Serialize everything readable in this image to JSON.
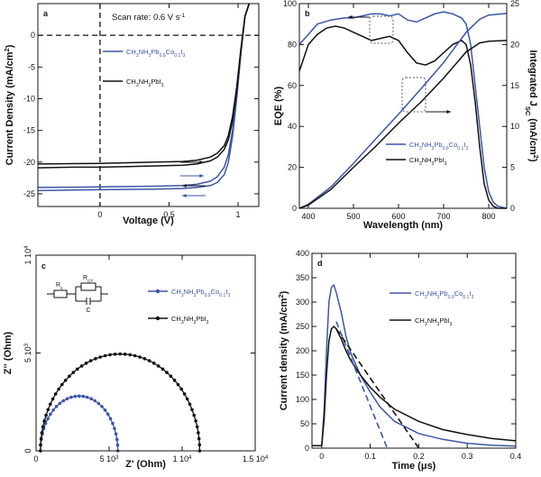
{
  "figure": {
    "blue": "#3a57a7",
    "black": "#111111"
  },
  "chart_data": [
    {
      "panel": "a",
      "type": "line",
      "annotation": "Scan rate: 0.6 V s",
      "annotation_sup": "-1",
      "xlabel": "Voltage (V)",
      "ylabel": "Current Density (mA/cm",
      "ylabel_sup": "2",
      "ylabel_end": ")",
      "xlim": [
        -0.45,
        1.15
      ],
      "ylim": [
        -27,
        5
      ],
      "xticks": [
        {
          "value": 0,
          "label": "0"
        },
        {
          "value": 0.5,
          "label": "0.5"
        },
        {
          "value": 1,
          "label": "1"
        }
      ],
      "yticks": [
        {
          "value": 0,
          "label": "0"
        },
        {
          "value": -5,
          "label": "-5"
        },
        {
          "value": -10,
          "label": "-10"
        },
        {
          "value": -15,
          "label": "-15"
        },
        {
          "value": -20,
          "label": "-20"
        },
        {
          "value": -25,
          "label": "-25"
        }
      ],
      "legend": [
        {
          "color": "#3a57a7",
          "parts": [
            [
              "CH",
              "n"
            ],
            [
              "3",
              "s"
            ],
            [
              "NH",
              "n"
            ],
            [
              "3",
              "s"
            ],
            [
              "Pb",
              "n"
            ],
            [
              "0.9",
              "s"
            ],
            [
              "Co",
              "n"
            ],
            [
              "0.1",
              "s"
            ],
            [
              "I",
              "n"
            ],
            [
              "3",
              "s"
            ]
          ]
        },
        {
          "color": "#111111",
          "parts": [
            [
              "CH",
              "n"
            ],
            [
              "3",
              "s"
            ],
            [
              "NH",
              "n"
            ],
            [
              "3",
              "s"
            ],
            [
              "PbI",
              "n"
            ],
            [
              "3",
              "s"
            ]
          ]
        }
      ],
      "series": [
        {
          "color": "#3a57a7",
          "x": [
            -0.45,
            -0.2,
            0,
            0.2,
            0.4,
            0.6,
            0.7,
            0.8,
            0.85,
            0.9,
            0.93,
            0.96,
            0.99,
            1.02,
            1.05,
            1.08
          ],
          "y": [
            -24.5,
            -24.4,
            -24.35,
            -24.3,
            -24.25,
            -24.15,
            -24.0,
            -23.7,
            -23.2,
            -22.0,
            -20.0,
            -16.0,
            -10.0,
            -3.0,
            3.0,
            5.0
          ]
        },
        {
          "color": "#3a57a7",
          "x": [
            -0.45,
            -0.2,
            0,
            0.2,
            0.4,
            0.6,
            0.7,
            0.8,
            0.85,
            0.9,
            0.93,
            0.96,
            0.99,
            1.02,
            1.05,
            1.08
          ],
          "y": [
            -24.0,
            -23.95,
            -23.9,
            -23.85,
            -23.8,
            -23.7,
            -23.5,
            -23.0,
            -22.3,
            -20.8,
            -18.8,
            -15.0,
            -9.5,
            -2.8,
            3.0,
            5.0
          ]
        },
        {
          "color": "#111111",
          "x": [
            -0.45,
            -0.2,
            0,
            0.2,
            0.4,
            0.6,
            0.7,
            0.8,
            0.85,
            0.9,
            0.93,
            0.96,
            0.99,
            1.02,
            1.05,
            1.08
          ],
          "y": [
            -20.9,
            -20.8,
            -20.8,
            -20.7,
            -20.6,
            -20.5,
            -20.3,
            -19.8,
            -19.2,
            -18.0,
            -16.5,
            -13.5,
            -8.8,
            -2.5,
            3.0,
            5.0
          ]
        },
        {
          "color": "#111111",
          "x": [
            -0.45,
            -0.2,
            0,
            0.2,
            0.4,
            0.6,
            0.7,
            0.8,
            0.85,
            0.9,
            0.93,
            0.96,
            0.99,
            1.02,
            1.05,
            1.08
          ],
          "y": [
            -20.3,
            -20.25,
            -20.2,
            -20.1,
            -20.0,
            -19.9,
            -19.7,
            -19.2,
            -18.6,
            -17.4,
            -15.8,
            -12.8,
            -8.2,
            -2.2,
            3.0,
            5.0
          ]
        }
      ]
    },
    {
      "panel": "b",
      "type": "line",
      "xlabel": "Wavelength (nm)",
      "ylabel": "EQE (%)",
      "y2label_parts": [
        [
          "Integrated J",
          "n"
        ],
        [
          "SC",
          "s"
        ],
        [
          " (mA/cm",
          "n"
        ],
        [
          "2",
          "p"
        ],
        [
          ")",
          "n"
        ]
      ],
      "xlim": [
        380,
        840
      ],
      "ylim": [
        0,
        100
      ],
      "y2lim": [
        0,
        25
      ],
      "xticks": [
        {
          "value": 400,
          "label": "400"
        },
        {
          "value": 500,
          "label": "500"
        },
        {
          "value": 600,
          "label": "600"
        },
        {
          "value": 700,
          "label": "700"
        },
        {
          "value": 800,
          "label": "800"
        }
      ],
      "yticks": [
        {
          "value": 0,
          "label": "0"
        },
        {
          "value": 20,
          "label": "20"
        },
        {
          "value": 40,
          "label": "40"
        },
        {
          "value": 60,
          "label": "60"
        },
        {
          "value": 80,
          "label": "80"
        },
        {
          "value": 100,
          "label": "100"
        }
      ],
      "y2ticks": [
        {
          "value": 0,
          "label": "0"
        },
        {
          "value": 5,
          "label": "5"
        },
        {
          "value": 10,
          "label": "10"
        },
        {
          "value": 15,
          "label": "15"
        },
        {
          "value": 20,
          "label": "20"
        },
        {
          "value": 25,
          "label": "25"
        }
      ],
      "legend": [
        {
          "color": "#3a57a7",
          "parts": [
            [
              "CH",
              "n"
            ],
            [
              "3",
              "s"
            ],
            [
              "NH",
              "n"
            ],
            [
              "3",
              "s"
            ],
            [
              "Pb",
              "n"
            ],
            [
              "0.9",
              "s"
            ],
            [
              "Co",
              "n"
            ],
            [
              "0.1",
              "s"
            ],
            [
              "I",
              "n"
            ],
            [
              "3",
              "s"
            ]
          ]
        },
        {
          "color": "#111111",
          "parts": [
            [
              "CH",
              "n"
            ],
            [
              "3",
              "s"
            ],
            [
              "NH",
              "n"
            ],
            [
              "3",
              "s"
            ],
            [
              "PbI",
              "n"
            ],
            [
              "3",
              "s"
            ]
          ]
        }
      ],
      "series": [
        {
          "role": "EQE",
          "color": "#3a57a7",
          "x": [
            380,
            400,
            420,
            450,
            480,
            500,
            520,
            540,
            560,
            580,
            600,
            620,
            640,
            660,
            680,
            700,
            720,
            740,
            750,
            760,
            770,
            780,
            790,
            800,
            810,
            820,
            840
          ],
          "y": [
            80,
            85,
            90,
            92,
            93,
            93,
            94,
            95,
            95,
            94,
            95,
            92,
            91,
            93,
            95,
            96,
            95,
            93,
            90,
            80,
            60,
            40,
            20,
            8,
            3,
            1,
            0
          ]
        },
        {
          "role": "EQE",
          "color": "#111111",
          "x": [
            380,
            400,
            420,
            440,
            460,
            480,
            500,
            520,
            540,
            560,
            580,
            600,
            620,
            640,
            660,
            680,
            700,
            720,
            740,
            750,
            760,
            770,
            780,
            790,
            800,
            810,
            820,
            840
          ],
          "y": [
            67,
            80,
            85,
            88,
            89,
            88,
            86,
            84,
            82,
            83,
            84,
            82,
            76,
            71,
            70,
            72,
            76,
            80,
            82,
            80,
            70,
            52,
            30,
            12,
            4,
            1,
            0,
            0
          ]
        },
        {
          "role": "Integrated JSC",
          "color": "#3a57a7",
          "x": [
            380,
            400,
            450,
            500,
            550,
            600,
            650,
            700,
            750,
            780,
            800,
            840
          ],
          "y": [
            0,
            0.5,
            2.6,
            5.5,
            8.5,
            11.5,
            14.6,
            17.8,
            21.5,
            23.1,
            23.6,
            23.8
          ]
        },
        {
          "role": "Integrated JSC",
          "color": "#111111",
          "x": [
            380,
            400,
            450,
            500,
            550,
            600,
            650,
            700,
            750,
            780,
            800,
            840
          ],
          "y": [
            0,
            0.4,
            2.3,
            5.0,
            7.6,
            10.4,
            13.0,
            15.9,
            19.1,
            20.2,
            20.4,
            20.5
          ]
        }
      ]
    },
    {
      "panel": "c",
      "type": "scatter",
      "xlabel": "Z' (Ohm)",
      "ylabel": "Z'' (Ohm)",
      "xlim": [
        0,
        15000
      ],
      "ylim": [
        0,
        10000
      ],
      "xticks": [
        {
          "value": 0,
          "label": "0"
        },
        {
          "value": 5000,
          "label": "5 10",
          "exp": "3"
        },
        {
          "value": 10000,
          "label": "1 10",
          "exp": "4"
        },
        {
          "value": 15000,
          "label": "1.5 10",
          "exp": "4"
        }
      ],
      "yticks": [
        {
          "value": 0,
          "label": "0"
        },
        {
          "value": 5000,
          "label": "5 10",
          "exp": "3"
        },
        {
          "value": 10000,
          "label": "1 10",
          "exp": "4"
        }
      ],
      "circuit": {
        "r": "R",
        "r_sub": "s",
        "rct": "R",
        "rct_sub": "CT",
        "c": "C"
      },
      "legend": [
        {
          "color": "#3a57a7",
          "parts": [
            [
              "CH",
              "n"
            ],
            [
              "3",
              "s"
            ],
            [
              "NH",
              "n"
            ],
            [
              "3",
              "s"
            ],
            [
              "Pb",
              "n"
            ],
            [
              "0.9",
              "s"
            ],
            [
              "Co",
              "n"
            ],
            [
              "0.1",
              "s"
            ],
            [
              "I",
              "n"
            ],
            [
              "3",
              "s"
            ]
          ]
        },
        {
          "color": "#111111",
          "parts": [
            [
              "CH",
              "n"
            ],
            [
              "3",
              "s"
            ],
            [
              "NH",
              "n"
            ],
            [
              "3",
              "s"
            ],
            [
              "PbI",
              "n"
            ],
            [
              "3",
              "s"
            ]
          ]
        }
      ],
      "series": [
        {
          "color": "#3a57a7",
          "semicircle": {
            "x_start": 300,
            "x_end": 5600,
            "height": 2800,
            "points": 30
          }
        },
        {
          "color": "#111111",
          "semicircle": {
            "x_start": 300,
            "x_end": 11200,
            "height": 4950,
            "points": 50
          }
        }
      ]
    },
    {
      "panel": "d",
      "type": "line",
      "xlabel": "Time (μs)",
      "ylabel": "Current density (mA/cm",
      "ylabel_sup": "2",
      "ylabel_end": ")",
      "xlim": [
        -0.02,
        0.4
      ],
      "ylim": [
        0,
        400
      ],
      "xticks": [
        {
          "value": 0,
          "label": "0"
        },
        {
          "value": 0.1,
          "label": "0.1"
        },
        {
          "value": 0.2,
          "label": "0.2"
        },
        {
          "value": 0.3,
          "label": "0.3"
        },
        {
          "value": 0.4,
          "label": "0.4"
        }
      ],
      "yticks": [
        {
          "value": 0,
          "label": "0"
        },
        {
          "value": 50,
          "label": "50"
        },
        {
          "value": 100,
          "label": "100"
        },
        {
          "value": 150,
          "label": "150"
        },
        {
          "value": 200,
          "label": "200"
        },
        {
          "value": 250,
          "label": "250"
        },
        {
          "value": 300,
          "label": "300"
        },
        {
          "value": 350,
          "label": "350"
        },
        {
          "value": 400,
          "label": "400"
        }
      ],
      "legend": [
        {
          "color": "#3a57a7",
          "parts": [
            [
              "CH",
              "n"
            ],
            [
              "3",
              "s"
            ],
            [
              "NH",
              "n"
            ],
            [
              "3",
              "s"
            ],
            [
              "Pb",
              "n"
            ],
            [
              "0.9",
              "s"
            ],
            [
              "Co",
              "n"
            ],
            [
              "0.1",
              "s"
            ],
            [
              "I",
              "n"
            ],
            [
              "3",
              "s"
            ]
          ]
        },
        {
          "color": "#111111",
          "parts": [
            [
              "CH",
              "n"
            ],
            [
              "3",
              "s"
            ],
            [
              "NH",
              "n"
            ],
            [
              "3",
              "s"
            ],
            [
              "PbI",
              "n"
            ],
            [
              "3",
              "s"
            ]
          ]
        }
      ],
      "series": [
        {
          "color": "#3a57a7",
          "x": [
            -0.02,
            0,
            0.005,
            0.01,
            0.015,
            0.02,
            0.025,
            0.03,
            0.04,
            0.05,
            0.06,
            0.08,
            0.1,
            0.12,
            0.15,
            0.2,
            0.25,
            0.3,
            0.35,
            0.4
          ],
          "y": [
            5,
            5,
            80,
            200,
            300,
            330,
            335,
            320,
            280,
            230,
            195,
            150,
            115,
            85,
            55,
            30,
            18,
            10,
            6,
            4
          ]
        },
        {
          "color": "#111111",
          "x": [
            -0.02,
            0,
            0.005,
            0.01,
            0.015,
            0.02,
            0.025,
            0.03,
            0.04,
            0.05,
            0.06,
            0.08,
            0.1,
            0.12,
            0.15,
            0.2,
            0.25,
            0.3,
            0.35,
            0.4
          ],
          "y": [
            5,
            5,
            60,
            150,
            220,
            245,
            250,
            245,
            225,
            200,
            180,
            150,
            125,
            105,
            80,
            55,
            38,
            28,
            20,
            15
          ]
        },
        {
          "color": "#3a57a7",
          "dashed": true,
          "x": [
            0.03,
            0.135
          ],
          "y": [
            260,
            0
          ]
        },
        {
          "color": "#111111",
          "dashed": true,
          "x": [
            0.03,
            0.2
          ],
          "y": [
            245,
            0
          ]
        }
      ]
    }
  ]
}
